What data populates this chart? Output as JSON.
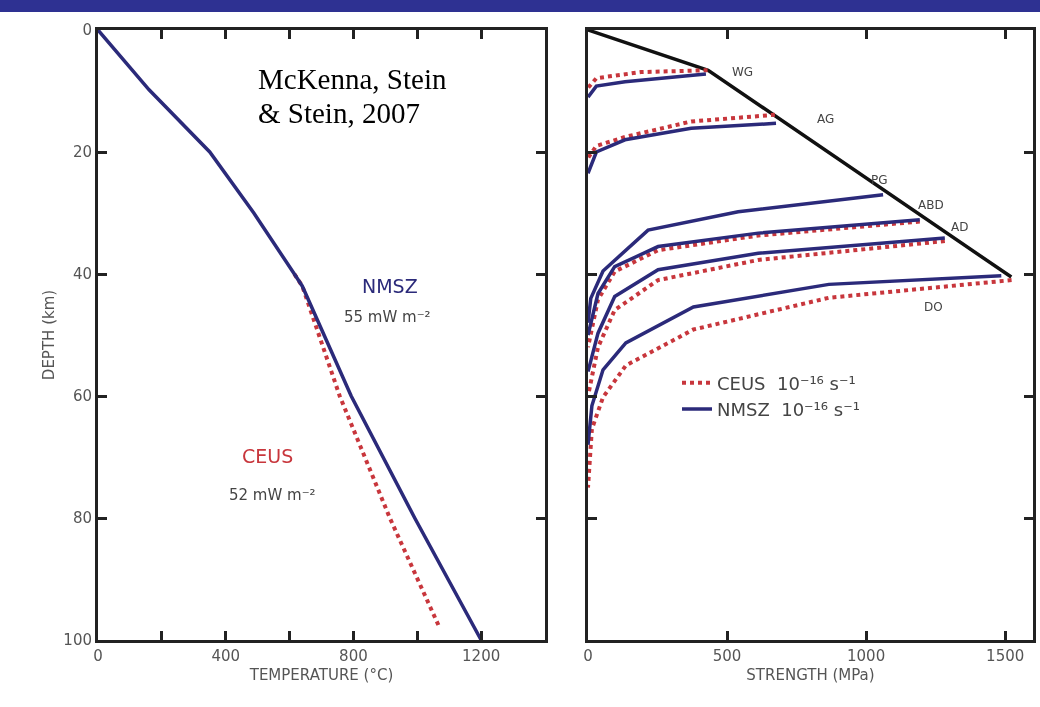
{
  "chart_data": [
    {
      "type": "line",
      "xlabel": "TEMPERATURE (°C)",
      "ylabel": "DEPTH (km)",
      "xlim": [
        0,
        1400
      ],
      "ylim": [
        100,
        0
      ],
      "xticks": [
        0,
        {
          "value": 200,
          "label": null
        },
        400,
        {
          "value": 600,
          "label": null
        },
        800,
        {
          "value": 1000,
          "label": null
        },
        1200
      ],
      "yticks": [
        0,
        20,
        40,
        60,
        80,
        100
      ],
      "grid": false,
      "legend": false,
      "marker": "none",
      "annotations": [
        "McKenna, Stein & Stein, 2007",
        "55 mW m⁻²",
        "52 mW m⁻²"
      ],
      "series": [
        {
          "name": "CEUS",
          "color": "#c8363c",
          "line_style": "dotted",
          "x": [
            615,
            640,
            757,
            914,
            1070
          ],
          "values": [
            40,
            42,
            60,
            80,
            98
          ]
        },
        {
          "name": "NMSZ",
          "color": "#2b2a7a",
          "line_style": "solid",
          "x": [
            0,
            160,
            350,
            488,
            615,
            640,
            793,
            992,
            1200
          ],
          "values": [
            0,
            9.8,
            20,
            30,
            40,
            42,
            60,
            80,
            100
          ]
        }
      ]
    },
    {
      "type": "line",
      "xlabel": "STRENGTH (MPa)",
      "xlim": [
        0,
        1600
      ],
      "ylim": [
        100,
        0
      ],
      "xticks": [
        0,
        500,
        1000,
        1500
      ],
      "yticks": [
        {
          "value": 0,
          "label": null
        },
        {
          "value": 20,
          "label": null
        },
        {
          "value": 40,
          "label": null
        },
        {
          "value": 60,
          "label": null
        },
        {
          "value": 80,
          "label": null
        },
        {
          "value": 100,
          "label": null
        }
      ],
      "tick_labels": "x",
      "grid": false,
      "legend": "center",
      "marker": "none",
      "annotations": [
        "WG",
        "AG",
        "PG",
        "ABD",
        "AD",
        "DO"
      ],
      "series": [
        {
          "color": "#111111",
          "line_style": "solid",
          "x": [
            0,
            432,
            1522
          ],
          "values": [
            0,
            6.6,
            40.5
          ]
        },
        {
          "name": "CEUS  10⁻¹⁶ s⁻¹",
          "color": "#c8363c",
          "line_style": "dotted",
          "x": [
            430,
            190,
            30,
            0,
            null,
            672,
            371,
            136,
            30,
            0,
            null,
            1193,
            612,
            252,
            96,
            36,
            0,
            null,
            1283,
            612,
            252,
            96,
            36,
            0,
            null,
            1523,
            866,
            379,
            136,
            54,
            14,
            0
          ],
          "values": [
            6.6,
            6.9,
            7.9,
            9.5,
            null,
            13.9,
            15,
            17.5,
            19,
            21,
            null,
            31.4,
            33.7,
            36.1,
            39.6,
            44.2,
            52,
            null,
            34.6,
            37.7,
            41,
            45.9,
            52,
            60,
            null,
            41,
            43.9,
            49.1,
            55,
            60.2,
            65.4,
            75
          ]
        },
        {
          "name": "NMSZ  10⁻¹⁶ s⁻¹",
          "color": "#2b2a7a",
          "line_style": "solid",
          "x": [
            424,
            133,
            30,
            0,
            null,
            676,
            371,
            133,
            30,
            0,
            null,
            1061,
            540,
            216,
            54,
            10,
            0,
            null,
            1193,
            612,
            252,
            96,
            36,
            0,
            null,
            1283,
            612,
            252,
            96,
            36,
            0,
            null,
            1486,
            866,
            379,
            136,
            54,
            14,
            0
          ],
          "values": [
            7.2,
            8.5,
            9.2,
            11,
            null,
            15.3,
            16.1,
            18,
            20,
            23.5,
            null,
            27.0,
            29.8,
            32.8,
            39.5,
            44,
            48,
            null,
            31.1,
            33.3,
            35.5,
            38.8,
            43.2,
            50,
            null,
            34.1,
            36.6,
            39.3,
            43.7,
            49.7,
            56,
            null,
            40.3,
            41.7,
            45.4,
            51.3,
            55.7,
            61.6,
            68
          ]
        }
      ]
    }
  ]
}
